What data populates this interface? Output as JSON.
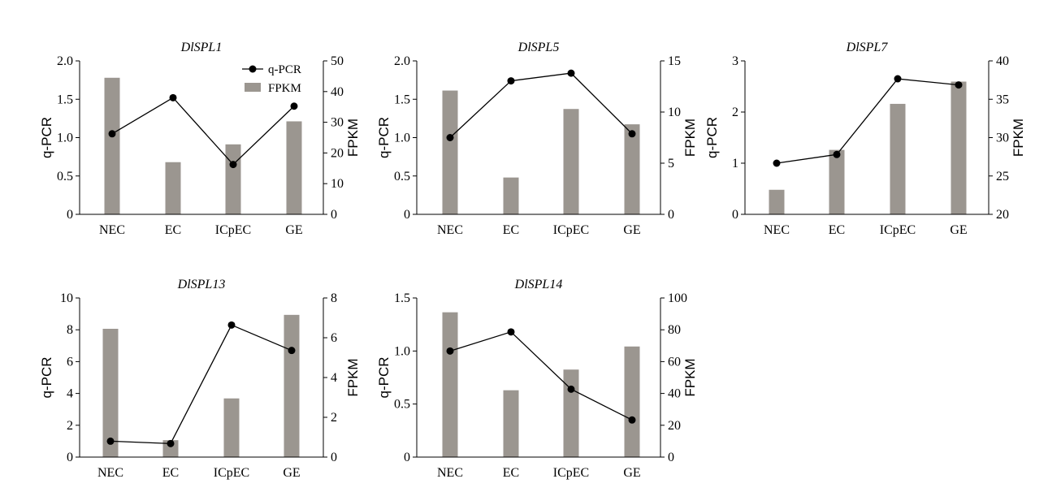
{
  "chart_data": [
    {
      "type": "bar",
      "title": "DlSPL1",
      "categories": [
        "NEC",
        "EC",
        "ICpEC",
        "GE"
      ],
      "ylabel": "q-PCR",
      "y2label": "FPKM",
      "ylim": [
        0,
        2.0
      ],
      "yticks": [
        "0",
        "0.5",
        "1.0",
        "1.5",
        "2.0"
      ],
      "y2lim": [
        0,
        50
      ],
      "y2ticks": [
        "0",
        "10",
        "20",
        "30",
        "40",
        "50"
      ],
      "legend": [
        "q-PCR",
        "FPKM"
      ],
      "series": [
        {
          "name": "q-PCR",
          "kind": "line",
          "axis": "left",
          "values": [
            1.05,
            1.52,
            0.65,
            1.41
          ]
        },
        {
          "name": "FPKM",
          "kind": "bar",
          "axis": "right",
          "values": [
            44.5,
            17,
            22.8,
            30.3
          ]
        }
      ]
    },
    {
      "type": "bar",
      "title": "DlSPL5",
      "categories": [
        "NEC",
        "EC",
        "ICpEC",
        "GE"
      ],
      "ylabel": "q-PCR",
      "y2label": "FPKM",
      "ylim": [
        0,
        2.0
      ],
      "yticks": [
        "0",
        "0.5",
        "1.0",
        "1.5",
        "2.0"
      ],
      "y2lim": [
        0,
        15
      ],
      "y2ticks": [
        "0",
        "5",
        "10",
        "15"
      ],
      "legend": [],
      "series": [
        {
          "name": "q-PCR",
          "kind": "line",
          "axis": "left",
          "values": [
            1.0,
            1.74,
            1.84,
            1.05
          ]
        },
        {
          "name": "FPKM",
          "kind": "bar",
          "axis": "right",
          "values": [
            12.1,
            3.6,
            10.3,
            8.8
          ]
        }
      ]
    },
    {
      "type": "bar",
      "title": "DlSPL7",
      "categories": [
        "NEC",
        "EC",
        "ICpEC",
        "GE"
      ],
      "ylabel": "q-PCR",
      "y2label": "FPKM",
      "ylim": [
        0,
        3
      ],
      "yticks": [
        "0",
        "1",
        "2",
        "3"
      ],
      "y2lim": [
        20,
        40
      ],
      "y2ticks": [
        "20",
        "25",
        "30",
        "35",
        "40"
      ],
      "legend": [],
      "series": [
        {
          "name": "q-PCR",
          "kind": "line",
          "axis": "left",
          "values": [
            1.0,
            1.17,
            2.65,
            2.53
          ]
        },
        {
          "name": "FPKM",
          "kind": "bar",
          "axis": "right",
          "values": [
            23.2,
            28.4,
            34.4,
            37.3
          ]
        }
      ]
    },
    {
      "type": "bar",
      "title": "DlSPL13",
      "categories": [
        "NEC",
        "EC",
        "ICpEC",
        "GE"
      ],
      "ylabel": "q-PCR",
      "y2label": "FPKM",
      "ylim": [
        0,
        10
      ],
      "yticks": [
        "0",
        "2",
        "4",
        "6",
        "8",
        "10"
      ],
      "y2lim": [
        0,
        8
      ],
      "y2ticks": [
        "0",
        "2",
        "4",
        "6",
        "8"
      ],
      "legend": [],
      "series": [
        {
          "name": "q-PCR",
          "kind": "line",
          "axis": "left",
          "values": [
            1.0,
            0.85,
            8.3,
            6.7
          ]
        },
        {
          "name": "FPKM",
          "kind": "bar",
          "axis": "right",
          "values": [
            6.45,
            0.85,
            2.95,
            7.15
          ]
        }
      ]
    },
    {
      "type": "bar",
      "title": "DlSPL14",
      "categories": [
        "NEC",
        "EC",
        "ICpEC",
        "GE"
      ],
      "ylabel": "q-PCR",
      "y2label": "FPKM",
      "ylim": [
        0,
        1.5
      ],
      "yticks": [
        "0",
        "0.5",
        "1.0",
        "1.5"
      ],
      "y2lim": [
        0,
        100
      ],
      "y2ticks": [
        "0",
        "20",
        "40",
        "60",
        "80",
        "100"
      ],
      "legend": [],
      "series": [
        {
          "name": "q-PCR",
          "kind": "line",
          "axis": "left",
          "values": [
            1.0,
            1.18,
            0.64,
            0.35
          ]
        },
        {
          "name": "FPKM",
          "kind": "bar",
          "axis": "right",
          "values": [
            91,
            42,
            55,
            69.5
          ]
        }
      ]
    }
  ],
  "colors": {
    "bar": "#9b9690",
    "line": "#000000",
    "marker": "#000000"
  }
}
